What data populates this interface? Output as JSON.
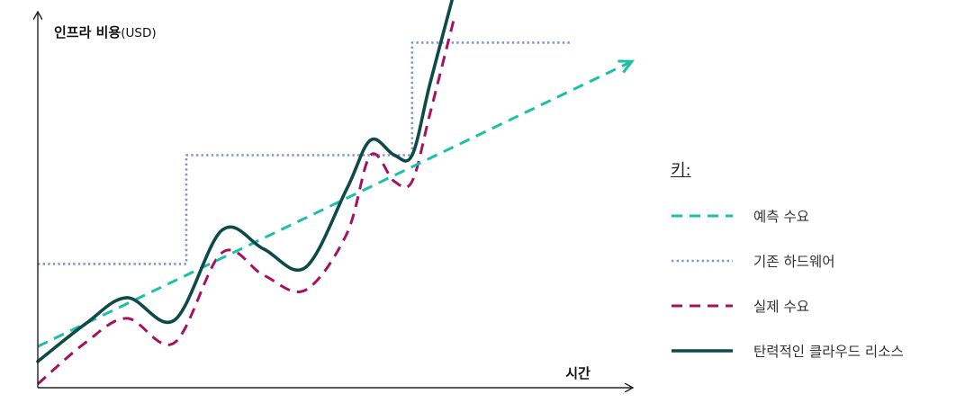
{
  "chart_data": {
    "type": "line",
    "ylabel_bold": "인프라 비용",
    "ylabel_unit": "(USD)",
    "xlabel": "시간",
    "legend_title": "키:",
    "xlim": [
      0,
      100
    ],
    "ylim": [
      0,
      100
    ],
    "series": [
      {
        "name": "예측 수요",
        "style": "dashed",
        "color": "#1cbfa8",
        "x": [
          0,
          100
        ],
        "y": [
          11,
          87
        ]
      },
      {
        "name": "기존 하드웨어",
        "style": "dotted",
        "color": "#7f95d1",
        "x": [
          0,
          25,
          25,
          63,
          63,
          90
        ],
        "y": [
          33,
          33,
          62,
          62,
          92,
          92
        ]
      },
      {
        "name": "실제 수요",
        "style": "dashed",
        "color": "#a4135f",
        "x": [
          0,
          8,
          15,
          23,
          31,
          38,
          45,
          52,
          56,
          60,
          63,
          66,
          70
        ],
        "y": [
          1,
          12,
          18.5,
          12,
          36,
          30,
          26,
          41,
          62,
          55,
          55,
          73,
          98
        ]
      },
      {
        "name": "탄력적인 클라우드 리소스",
        "style": "solid",
        "color": "#0e4a4a",
        "x": [
          0,
          8,
          15,
          23,
          31,
          38,
          45,
          52,
          56,
          60,
          63,
          66,
          70
        ],
        "y": [
          7,
          17,
          24,
          18,
          42,
          37,
          32,
          53,
          66,
          62,
          62,
          81,
          105
        ]
      }
    ]
  }
}
